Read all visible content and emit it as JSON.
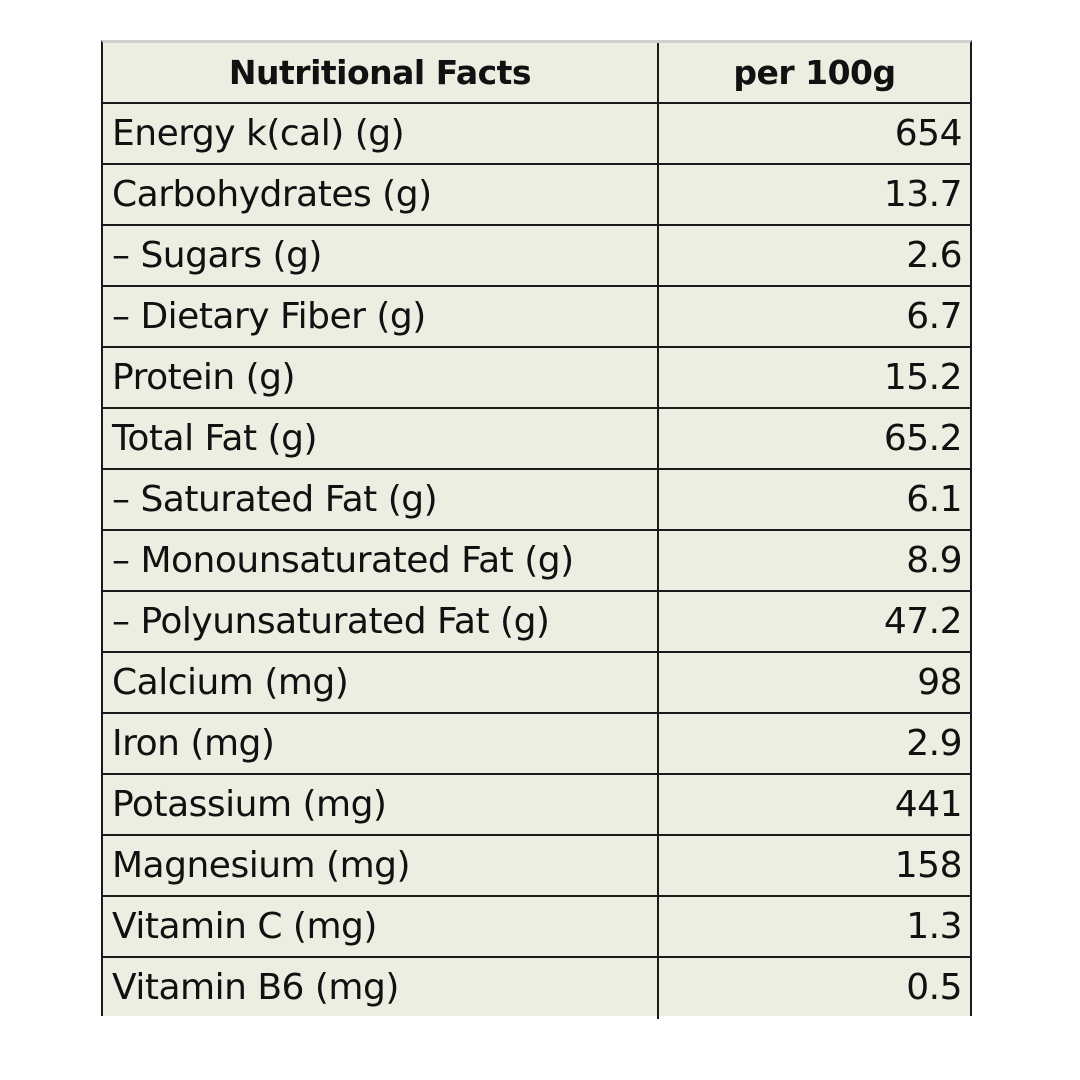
{
  "table": {
    "header": {
      "name": "Nutritional Facts",
      "value": "per 100g"
    },
    "rows": [
      {
        "name": "Energy k(cal) (g)",
        "value": "654"
      },
      {
        "name": "Carbohydrates (g)",
        "value": "13.7"
      },
      {
        "name": "– Sugars (g)",
        "value": "2.6"
      },
      {
        "name": "– Dietary Fiber (g)",
        "value": "6.7"
      },
      {
        "name": "Protein (g)",
        "value": "15.2"
      },
      {
        "name": "Total Fat (g)",
        "value": "65.2"
      },
      {
        "name": "– Saturated Fat (g)",
        "value": "6.1"
      },
      {
        "name": "– Monounsaturated Fat (g)",
        "value": "8.9"
      },
      {
        "name": "– Polyunsaturated Fat (g)",
        "value": "47.2"
      },
      {
        "name": "Calcium (mg)",
        "value": "98"
      },
      {
        "name": "Iron (mg)",
        "value": "2.9"
      },
      {
        "name": "Potassium (mg)",
        "value": "441"
      },
      {
        "name": "Magnesium (mg)",
        "value": "158"
      },
      {
        "name": "Vitamin C (mg)",
        "value": "1.3"
      },
      {
        "name": "Vitamin B6 (mg)",
        "value": "0.5"
      }
    ]
  },
  "colors": {
    "table_background": "#ebeee0",
    "grid_lines": "#1a1a1a",
    "text": "#111111"
  }
}
